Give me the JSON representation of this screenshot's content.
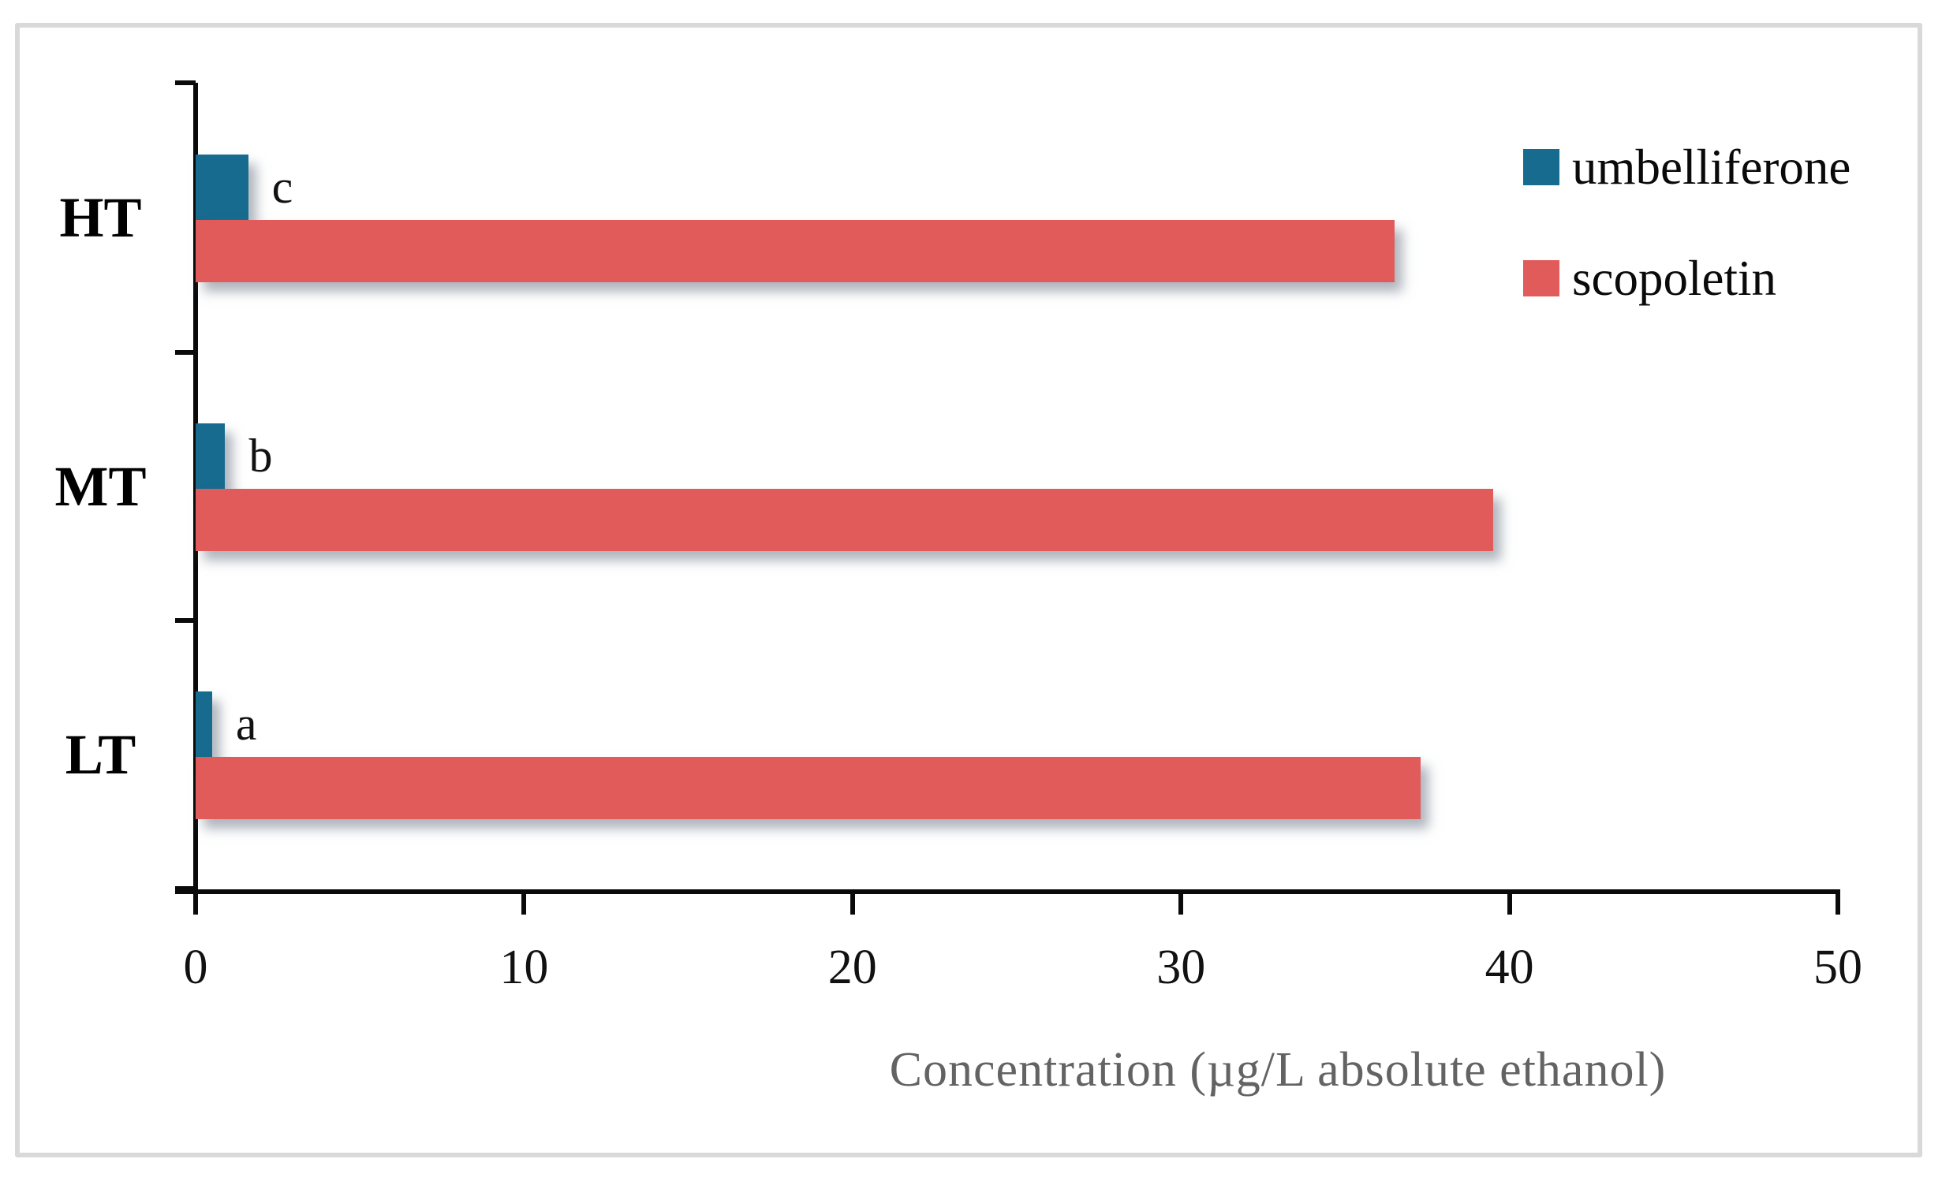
{
  "chart_data": {
    "type": "bar",
    "orientation": "horizontal",
    "categories": [
      "HT",
      "MT",
      "LT"
    ],
    "series": [
      {
        "name": "umbelliferone",
        "color": "#176B8F",
        "values": [
          1.6,
          0.9,
          0.5
        ]
      },
      {
        "name": "scopoletin",
        "color": "#E25B5B",
        "values": [
          36.5,
          39.5,
          37.3
        ]
      }
    ],
    "bar_labels": {
      "on_series": "umbelliferone",
      "labels": [
        "c",
        "b",
        "a"
      ]
    },
    "title": "",
    "xlabel": "Concentration (µg/L absolute ethanol)",
    "ylabel": "",
    "xlim": [
      0,
      50
    ],
    "xticks": [
      0,
      10,
      20,
      30,
      40,
      50
    ],
    "grid": false,
    "legend_position": "upper right",
    "legend_items": [
      "umbelliferone",
      "scopoletin"
    ]
  },
  "colors": {
    "umbelliferone": "#176B8F",
    "scopoletin": "#E25B5B",
    "axis": "#0a0a0a",
    "axis_title_text": "#636363",
    "figure_border": "#d9d9d9"
  }
}
